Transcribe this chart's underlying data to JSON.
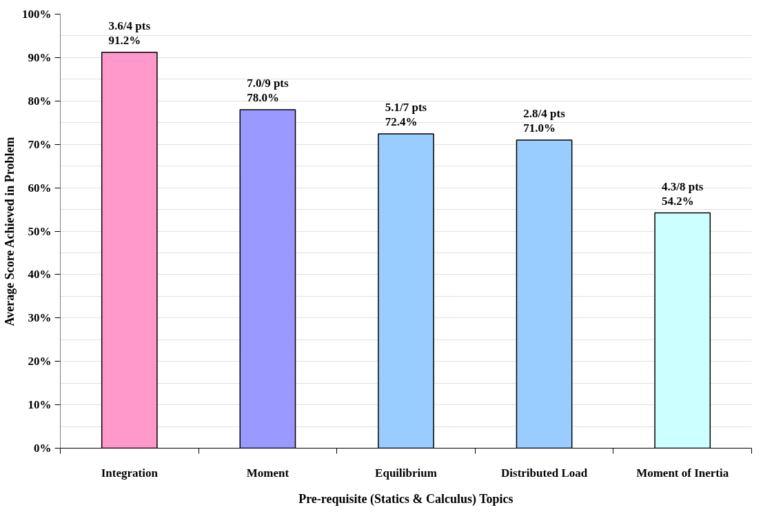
{
  "chart_data": {
    "type": "bar",
    "xlabel": "Pre-requisite (Statics & Calculus) Topics",
    "ylabel": "Average Score Achieved in Problem",
    "categories": [
      "Integration",
      "Moment",
      "Equilibrium",
      "Distributed Load",
      "Moment of Inertia"
    ],
    "values": [
      91.2,
      78.0,
      72.4,
      71.0,
      54.2
    ],
    "colors": [
      "#ff99cc",
      "#9999ff",
      "#99ccff",
      "#99ccff",
      "#ccffff"
    ],
    "value_labels": [
      "3.6/4 pts\n91.2%",
      "7.0/9 pts\n78.0%",
      "5.1/7 pts\n72.4%",
      "2.8/4 pts\n71.0%",
      "4.3/8 pts\n54.2%"
    ],
    "ylim": [
      0,
      100
    ],
    "yticks": [
      {
        "value": 0,
        "label": "0%"
      },
      {
        "value": 5,
        "label": null
      },
      {
        "value": 10,
        "label": "10%"
      },
      {
        "value": 15,
        "label": null
      },
      {
        "value": 20,
        "label": "20%"
      },
      {
        "value": 25,
        "label": null
      },
      {
        "value": 30,
        "label": "30%"
      },
      {
        "value": 35,
        "label": null
      },
      {
        "value": 40,
        "label": "40%"
      },
      {
        "value": 45,
        "label": null
      },
      {
        "value": 50,
        "label": "50%"
      },
      {
        "value": 55,
        "label": null
      },
      {
        "value": 60,
        "label": "60%"
      },
      {
        "value": 65,
        "label": null
      },
      {
        "value": 70,
        "label": "70%"
      },
      {
        "value": 75,
        "label": null
      },
      {
        "value": 80,
        "label": "80%"
      },
      {
        "value": 85,
        "label": null
      },
      {
        "value": 90,
        "label": "90%"
      },
      {
        "value": 95,
        "label": null
      },
      {
        "value": 100,
        "label": "100%"
      }
    ],
    "grid": "y"
  }
}
